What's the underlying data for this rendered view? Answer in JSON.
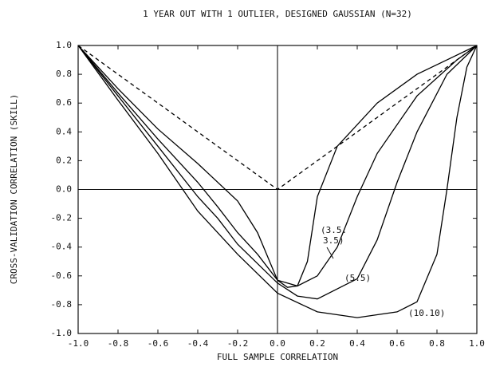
{
  "chart_data": {
    "type": "line",
    "title": "1 YEAR OUT WITH 1 OUTLIER, DESIGNED GAUSSIAN (N=32)",
    "xlabel": "FULL SAMPLE CORRELATION",
    "ylabel": "CROSS-VALIDATION CORRELATION (SKILL)",
    "xlim": [
      -1,
      1
    ],
    "ylim": [
      -1,
      1
    ],
    "xticks": [
      {
        "value": -1,
        "label": "-1.0"
      },
      -0.8,
      -0.6,
      -0.4,
      -0.2,
      {
        "value": 0,
        "label": "0.0"
      },
      0.2,
      0.4,
      0.6,
      0.8,
      {
        "value": 1,
        "label": "1.0"
      }
    ],
    "yticks": [
      {
        "value": -1,
        "label": "-1.0"
      },
      -0.8,
      -0.6,
      -0.4,
      -0.2,
      {
        "value": 0,
        "label": "0.0"
      },
      0.2,
      0.4,
      0.6,
      0.8,
      {
        "value": 1,
        "label": "1.0"
      }
    ],
    "series": [
      {
        "color": "#000000",
        "style": "dashed",
        "x": [
          -1,
          0,
          1
        ],
        "values": [
          1,
          0,
          1
        ]
      },
      {
        "color": "#000000",
        "style": "solid",
        "x": [
          -1,
          -0.8,
          -0.6,
          -0.4,
          -0.2,
          -0.1,
          0,
          0.05,
          0.1,
          0.15,
          0.2,
          0.3,
          0.5,
          0.7,
          0.85,
          1
        ],
        "values": [
          1,
          0.7,
          0.42,
          0.18,
          -0.08,
          -0.3,
          -0.63,
          -0.68,
          -0.67,
          -0.5,
          -0.05,
          0.3,
          0.6,
          0.8,
          0.9,
          1
        ]
      },
      {
        "color": "#000000",
        "style": "solid",
        "x": [
          -1,
          -0.8,
          -0.6,
          -0.4,
          -0.3,
          -0.2,
          -0.1,
          0,
          0.1,
          0.2,
          0.3,
          0.4,
          0.5,
          0.7,
          0.9,
          1
        ],
        "values": [
          1,
          0.67,
          0.35,
          0.05,
          -0.12,
          -0.3,
          -0.45,
          -0.63,
          -0.67,
          -0.6,
          -0.4,
          -0.05,
          0.25,
          0.65,
          0.9,
          1
        ]
      },
      {
        "color": "#000000",
        "style": "solid",
        "x": [
          -1,
          -0.8,
          -0.6,
          -0.4,
          -0.3,
          -0.2,
          0,
          0.1,
          0.2,
          0.4,
          0.5,
          0.6,
          0.7,
          0.85,
          1
        ],
        "values": [
          1,
          0.65,
          0.3,
          -0.05,
          -0.2,
          -0.38,
          -0.65,
          -0.74,
          -0.76,
          -0.62,
          -0.35,
          0.05,
          0.4,
          0.8,
          1
        ]
      },
      {
        "color": "#000000",
        "style": "solid",
        "x": [
          -1,
          -0.8,
          -0.6,
          -0.5,
          -0.4,
          -0.2,
          0,
          0.2,
          0.4,
          0.6,
          0.7,
          0.8,
          0.85,
          0.9,
          0.95,
          1
        ],
        "values": [
          1,
          0.62,
          0.25,
          0.05,
          -0.15,
          -0.45,
          -0.72,
          -0.85,
          -0.89,
          -0.85,
          -0.78,
          -0.45,
          0,
          0.5,
          0.85,
          1
        ]
      }
    ],
    "annotations": [
      "(3.5.",
      "3.5)",
      "(5.5)",
      "(10.10)"
    ]
  }
}
